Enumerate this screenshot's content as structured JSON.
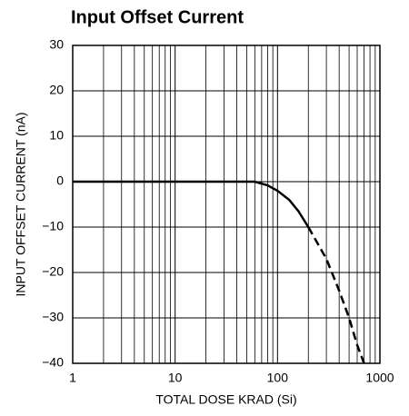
{
  "chart_data": {
    "type": "line",
    "title": "Input Offset Current",
    "xlabel": "TOTAL DOSE KRAD (Si)",
    "ylabel": "INPUT OFFSET CURRENT (nA)",
    "xscale": "log",
    "xlim": [
      1,
      1000
    ],
    "xticks": [
      1,
      10,
      100,
      1000
    ],
    "xminorticks": [
      2,
      3,
      4,
      5,
      6,
      7,
      8,
      9,
      20,
      30,
      40,
      50,
      60,
      70,
      80,
      90,
      200,
      300,
      400,
      500,
      600,
      700,
      800,
      900
    ],
    "ylim": [
      -40,
      30
    ],
    "yticks": [
      {
        "value": -40,
        "label": "−40"
      },
      {
        "value": -30,
        "label": "−30"
      },
      {
        "value": -20,
        "label": "−20"
      },
      {
        "value": -10,
        "label": "−10"
      },
      0,
      10,
      20,
      30
    ],
    "grid": true,
    "series": [
      {
        "color": "#000000",
        "linestyle": "solid",
        "x": [
          1,
          60,
          80,
          100,
          130,
          160,
          200
        ],
        "values": [
          0,
          0,
          -0.8,
          -2,
          -4,
          -6.5,
          -10
        ]
      },
      {
        "color": "#000000",
        "linestyle": "dashed",
        "x": [
          200,
          300,
          400,
          500,
          600,
          700
        ],
        "values": [
          -10,
          -17,
          -24,
          -30,
          -36,
          -40
        ]
      }
    ]
  }
}
